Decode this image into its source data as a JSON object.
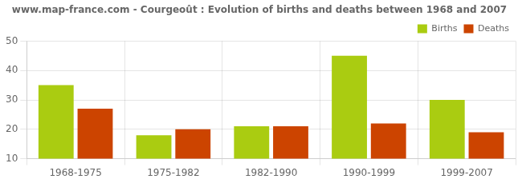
{
  "chart_data": {
    "type": "bar",
    "title": "www.map-france.com - Courgeoût : Evolution of births and deaths between 1968 and 2007",
    "categories": [
      "1968-1975",
      "1975-1982",
      "1982-1990",
      "1990-1999",
      "1999-2007"
    ],
    "series": [
      {
        "name": "Births",
        "color": "#aacc11",
        "values": [
          35,
          18,
          21,
          45,
          30
        ]
      },
      {
        "name": "Deaths",
        "color": "#cc4400",
        "values": [
          27,
          20,
          21,
          22,
          19
        ]
      }
    ],
    "ylim": [
      10,
      50
    ],
    "yticks": [
      10,
      20,
      30,
      40,
      50
    ],
    "grid": true,
    "legend": "upper right"
  }
}
